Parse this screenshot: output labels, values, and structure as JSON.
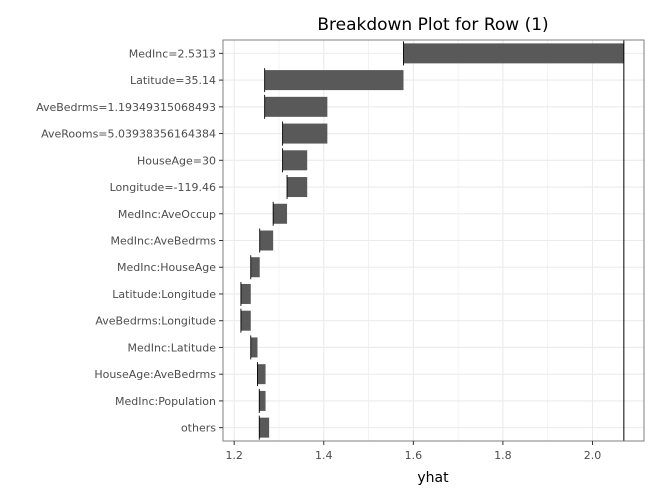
{
  "chart_data": {
    "type": "bar",
    "title": "Breakdown Plot for Row (1)",
    "xlabel": "yhat",
    "ylabel": "",
    "xlim": [
      1.175,
      2.115
    ],
    "x_ticks": [
      1.2,
      1.4,
      1.6,
      1.8,
      2.0
    ],
    "x_tick_labels": [
      "1.2",
      "1.4",
      "1.6",
      "1.8",
      "2.0"
    ],
    "grid": true,
    "final_prediction": 2.07,
    "bar_color": "#595959",
    "grid_color": "#ebebeb",
    "categories": [
      "MedInc=2.5313",
      "Latitude=35.14",
      "AveBedrms=1.19349315068493",
      "AveRooms=5.03938356164384",
      "HouseAge=30",
      "Longitude=-119.46",
      "MedInc:AveOccup",
      "MedInc:AveBedrms",
      "MedInc:HouseAge",
      "Latitude:Longitude",
      "AveBedrms:Longitude",
      "MedInc:Latitude",
      "HouseAge:AveBedrms",
      "MedInc:Population",
      "others"
    ],
    "bars": [
      {
        "start": 1.578,
        "end": 2.07
      },
      {
        "start": 1.268,
        "end": 1.578
      },
      {
        "start": 1.268,
        "end": 1.408
      },
      {
        "start": 1.308,
        "end": 1.408
      },
      {
        "start": 1.308,
        "end": 1.363
      },
      {
        "start": 1.318,
        "end": 1.363
      },
      {
        "start": 1.287,
        "end": 1.318
      },
      {
        "start": 1.257,
        "end": 1.287
      },
      {
        "start": 1.237,
        "end": 1.257
      },
      {
        "start": 1.215,
        "end": 1.237
      },
      {
        "start": 1.215,
        "end": 1.237
      },
      {
        "start": 1.237,
        "end": 1.252
      },
      {
        "start": 1.252,
        "end": 1.27
      },
      {
        "start": 1.256,
        "end": 1.27
      },
      {
        "start": 1.256,
        "end": 1.278
      }
    ]
  }
}
